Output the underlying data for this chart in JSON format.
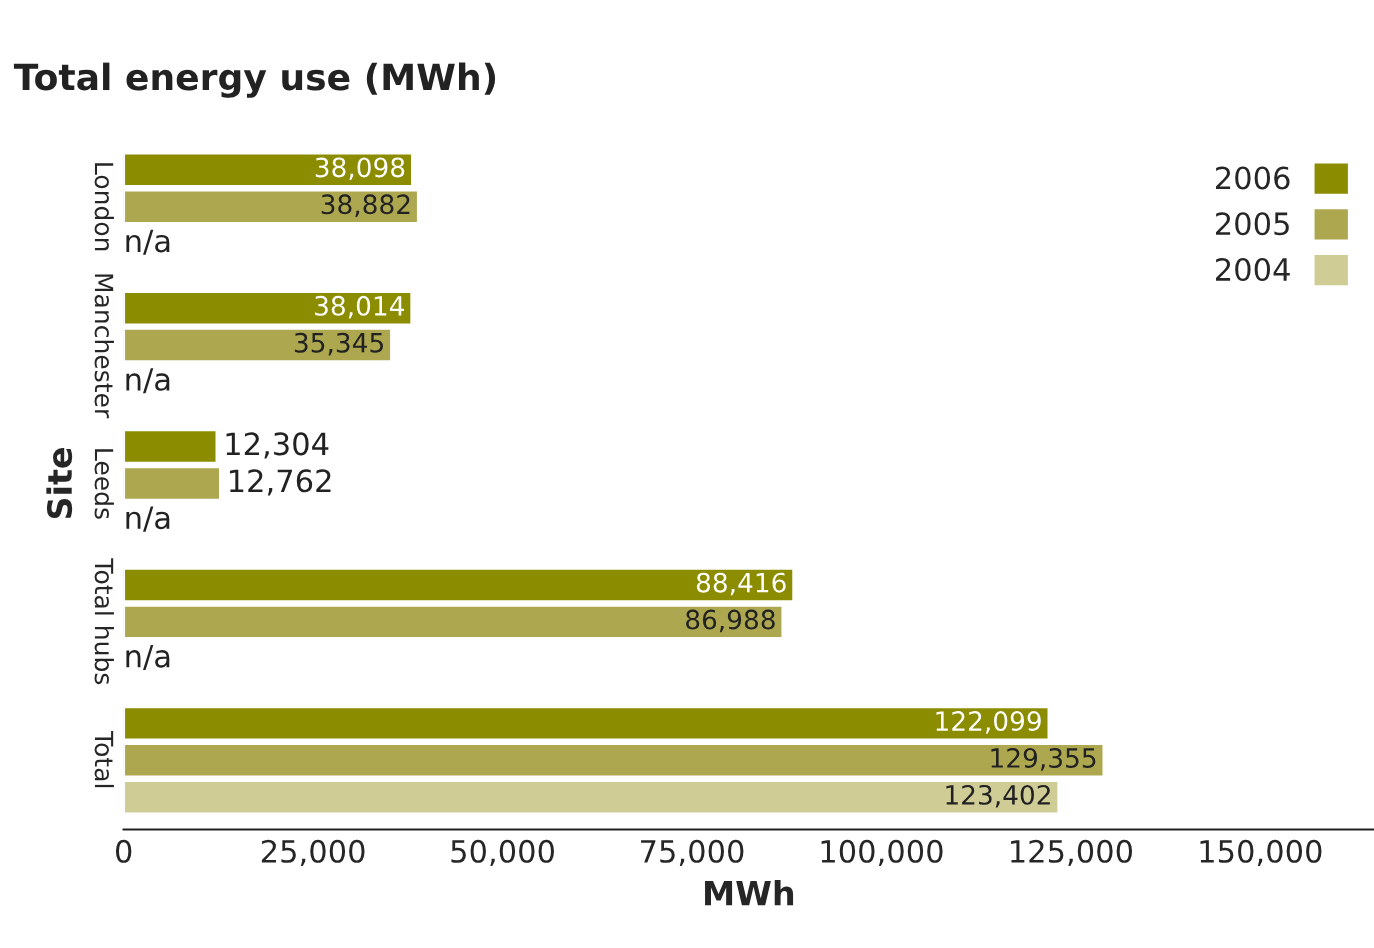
{
  "chart_data": {
    "type": "bar",
    "orientation": "horizontal",
    "title": "Total energy use (MWh)",
    "xlabel": "MWh",
    "ylabel": "Site",
    "categories": [
      "London",
      "Manchester",
      "Leeds",
      "Total hubs",
      "Total"
    ],
    "series": [
      {
        "name": "2006",
        "color": "#8c8c00",
        "values": [
          38098,
          38014,
          12304,
          88416,
          122099
        ],
        "value_labels": [
          "38,098",
          "38,014",
          "12,304",
          "88,416",
          "122,099"
        ]
      },
      {
        "name": "2005",
        "color": "#ada850",
        "values": [
          38882,
          35345,
          12762,
          86988,
          129355
        ],
        "value_labels": [
          "38,882",
          "35,345",
          "12,762",
          "86,988",
          "129,355"
        ]
      },
      {
        "name": "2004",
        "color": "#d0cc96",
        "values": [
          null,
          null,
          null,
          null,
          123402
        ],
        "value_labels": [
          "n/a",
          "n/a",
          "n/a",
          "n/a",
          "123,402"
        ]
      }
    ],
    "xlim": [
      0,
      165000
    ],
    "xticks": [
      {
        "value": 0,
        "label": "0"
      },
      {
        "value": 25000,
        "label": "25,000"
      },
      {
        "value": 50000,
        "label": "50,000"
      },
      {
        "value": 75000,
        "label": "75,000"
      },
      {
        "value": 100000,
        "label": "100,000"
      },
      {
        "value": 125000,
        "label": "125,000"
      },
      {
        "value": 150000,
        "label": "150,000"
      }
    ],
    "legend": "top right",
    "grid": false
  }
}
